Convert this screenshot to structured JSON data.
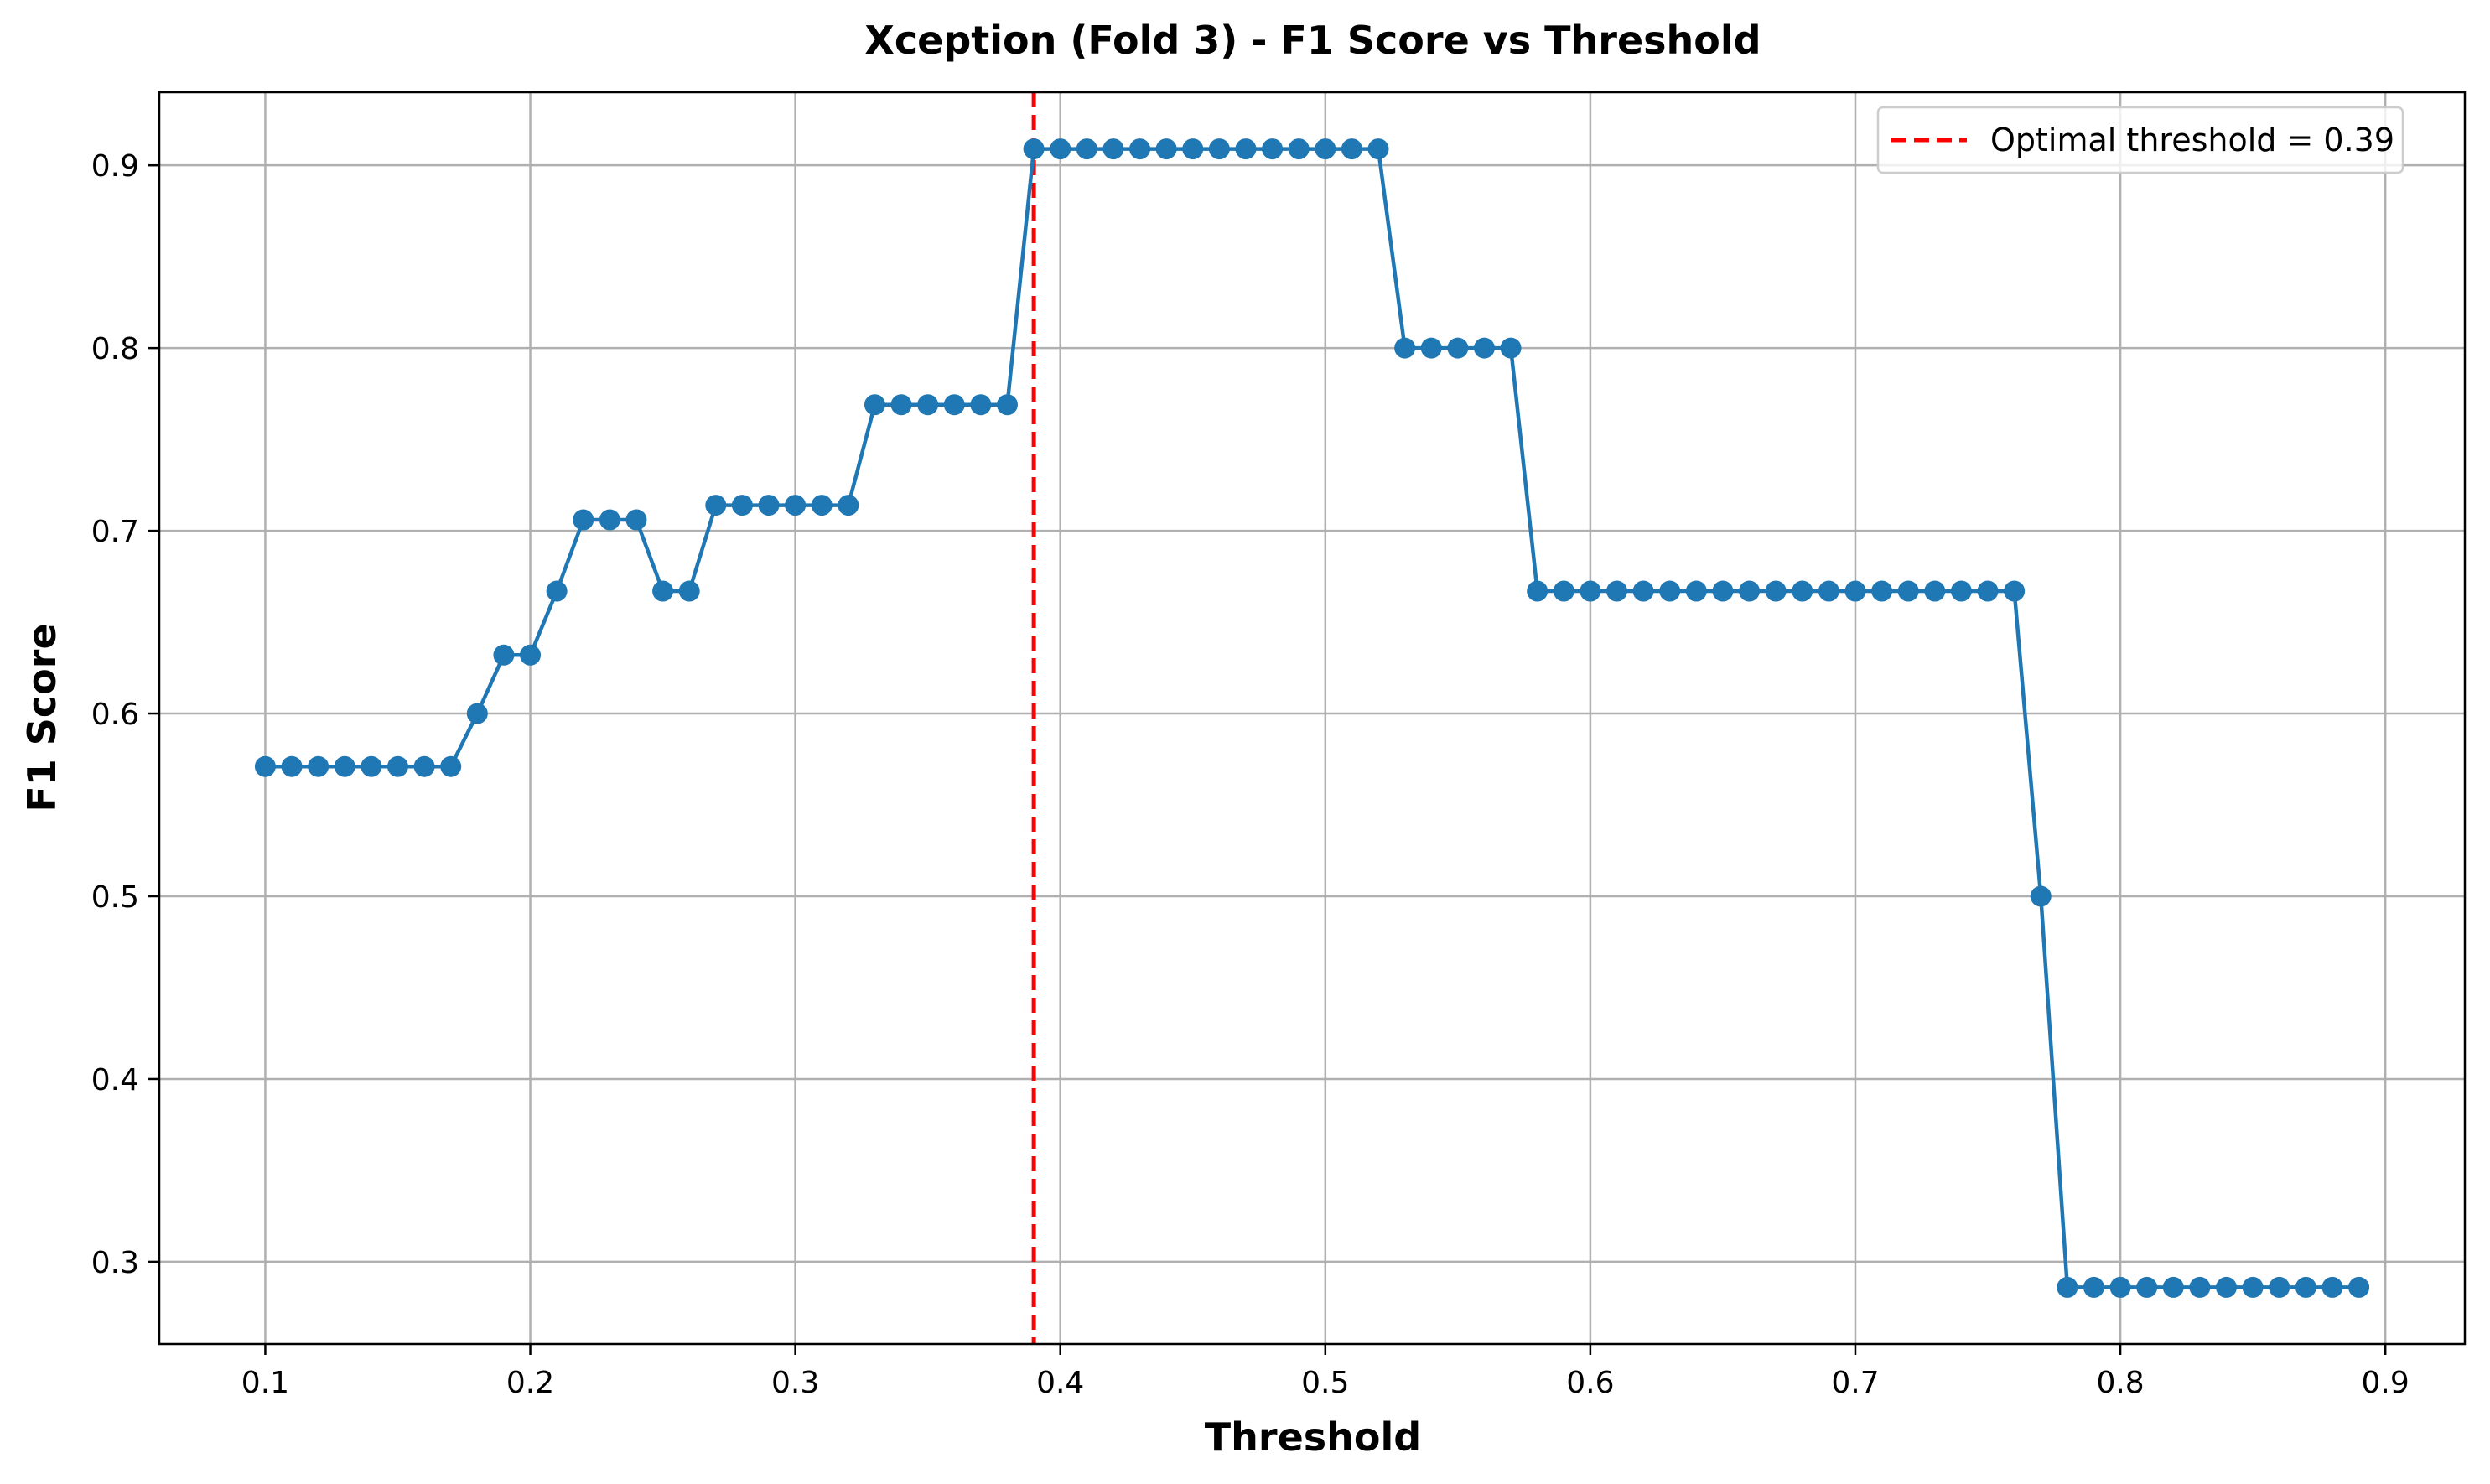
{
  "chart_data": {
    "type": "line",
    "title": "Xception (Fold 3) - F1 Score vs Threshold",
    "xlabel": "Threshold",
    "ylabel": "F1 Score",
    "xlim": [
      0.06,
      0.93
    ],
    "ylim": [
      0.255,
      0.94
    ],
    "xticks": [
      0.1,
      0.2,
      0.3,
      0.4,
      0.5,
      0.6,
      0.7,
      0.8,
      0.9
    ],
    "xtick_labels": [
      "0.1",
      "0.2",
      "0.3",
      "0.4",
      "0.5",
      "0.6",
      "0.7",
      "0.8",
      "0.9"
    ],
    "yticks": [
      0.3,
      0.4,
      0.5,
      0.6,
      0.7,
      0.8,
      0.9
    ],
    "ytick_labels": [
      "0.3",
      "0.4",
      "0.5",
      "0.6",
      "0.7",
      "0.8",
      "0.9"
    ],
    "grid": true,
    "legend_position": "top-right",
    "series": [
      {
        "color": "#1f77b4",
        "marker": "circle",
        "x": [
          0.1,
          0.11,
          0.12,
          0.13,
          0.14,
          0.15,
          0.16,
          0.17,
          0.18,
          0.19,
          0.2,
          0.21,
          0.22,
          0.23,
          0.24,
          0.25,
          0.26,
          0.27,
          0.28,
          0.29,
          0.3,
          0.31,
          0.32,
          0.33,
          0.34,
          0.35,
          0.36,
          0.37,
          0.38,
          0.39,
          0.4,
          0.41,
          0.42,
          0.43,
          0.44,
          0.45,
          0.46,
          0.47,
          0.48,
          0.49,
          0.5,
          0.51,
          0.52,
          0.53,
          0.54,
          0.55,
          0.56,
          0.57,
          0.58,
          0.59,
          0.6,
          0.61,
          0.62,
          0.63,
          0.64,
          0.65,
          0.66,
          0.67,
          0.68,
          0.69,
          0.7,
          0.71,
          0.72,
          0.73,
          0.74,
          0.75,
          0.76,
          0.77,
          0.78,
          0.79,
          0.8,
          0.81,
          0.82,
          0.83,
          0.84,
          0.85,
          0.86,
          0.87,
          0.88,
          0.89
        ],
        "y": [
          0.571,
          0.571,
          0.571,
          0.571,
          0.571,
          0.571,
          0.571,
          0.571,
          0.6,
          0.632,
          0.632,
          0.667,
          0.706,
          0.706,
          0.706,
          0.667,
          0.667,
          0.714,
          0.714,
          0.714,
          0.714,
          0.714,
          0.714,
          0.769,
          0.769,
          0.769,
          0.769,
          0.769,
          0.769,
          0.909,
          0.909,
          0.909,
          0.909,
          0.909,
          0.909,
          0.909,
          0.909,
          0.909,
          0.909,
          0.909,
          0.909,
          0.909,
          0.909,
          0.8,
          0.8,
          0.8,
          0.8,
          0.8,
          0.667,
          0.667,
          0.667,
          0.667,
          0.667,
          0.667,
          0.667,
          0.667,
          0.667,
          0.667,
          0.667,
          0.667,
          0.667,
          0.667,
          0.667,
          0.667,
          0.667,
          0.667,
          0.667,
          0.5,
          0.286,
          0.286,
          0.286,
          0.286,
          0.286,
          0.286,
          0.286,
          0.286,
          0.286,
          0.286,
          0.286,
          0.286
        ]
      }
    ],
    "vline": {
      "x": 0.39,
      "color": "#ff0000",
      "style": "dashed",
      "label": "Optimal threshold = 0.39"
    }
  }
}
